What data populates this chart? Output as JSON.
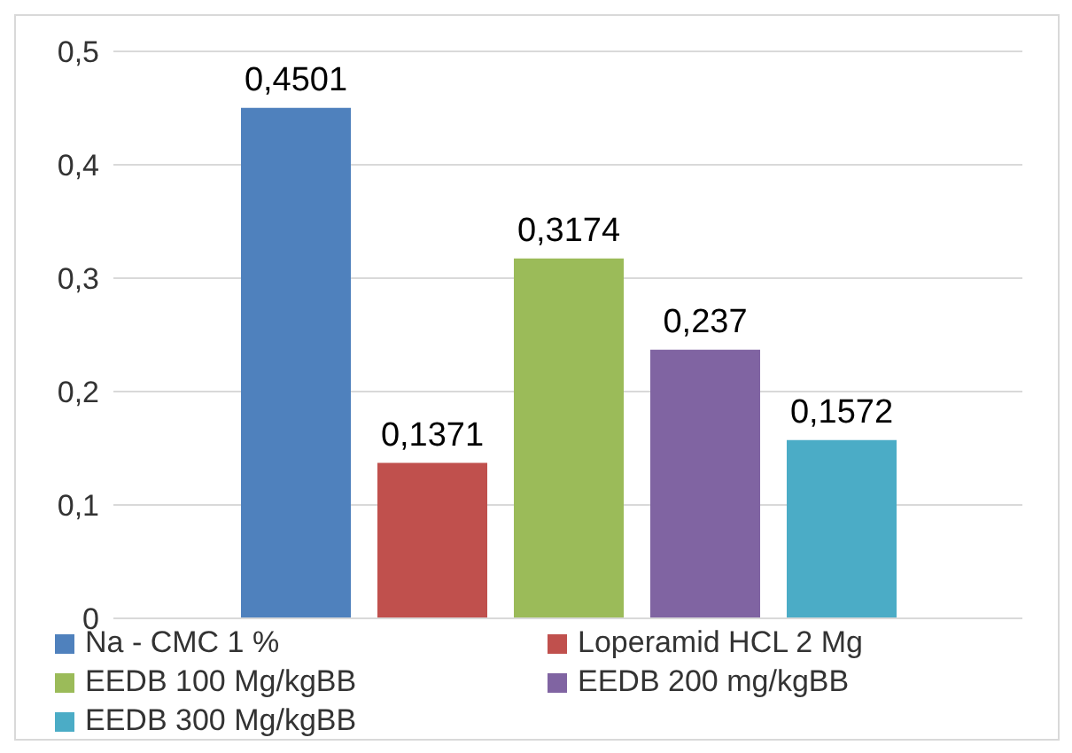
{
  "chart_data": {
    "type": "bar",
    "categories": [
      null
    ],
    "series": [
      {
        "name": "Na - CMC 1 %",
        "color": "#4f81bd",
        "values": [
          0.4501
        ],
        "value_labels": [
          "0,4501"
        ]
      },
      {
        "name": "Loperamid HCL 2 Mg",
        "color": "#c0504d",
        "values": [
          0.1371
        ],
        "value_labels": [
          "0,1371"
        ]
      },
      {
        "name": "EEDB 100 Mg/kgBB",
        "color": "#9bbb59",
        "values": [
          0.3174
        ],
        "value_labels": [
          "0,3174"
        ]
      },
      {
        "name": "EEDB 200 mg/kgBB",
        "color": "#8064a2",
        "values": [
          0.237
        ],
        "value_labels": [
          "0,237"
        ]
      },
      {
        "name": "EEDB 300 Mg/kgBB",
        "color": "#4bacc6",
        "values": [
          0.1572
        ],
        "value_labels": [
          "0,1572"
        ]
      }
    ],
    "ylim": [
      0,
      0.5
    ],
    "yticks": [
      {
        "value": 0,
        "label": "0"
      },
      {
        "value": 0.1,
        "label": "0,1"
      },
      {
        "value": 0.2,
        "label": "0,2"
      },
      {
        "value": 0.3,
        "label": "0,3"
      },
      {
        "value": 0.4,
        "label": "0,4"
      },
      {
        "value": 0.5,
        "label": "0,5"
      }
    ],
    "grid": "y",
    "legend": "bottom"
  }
}
